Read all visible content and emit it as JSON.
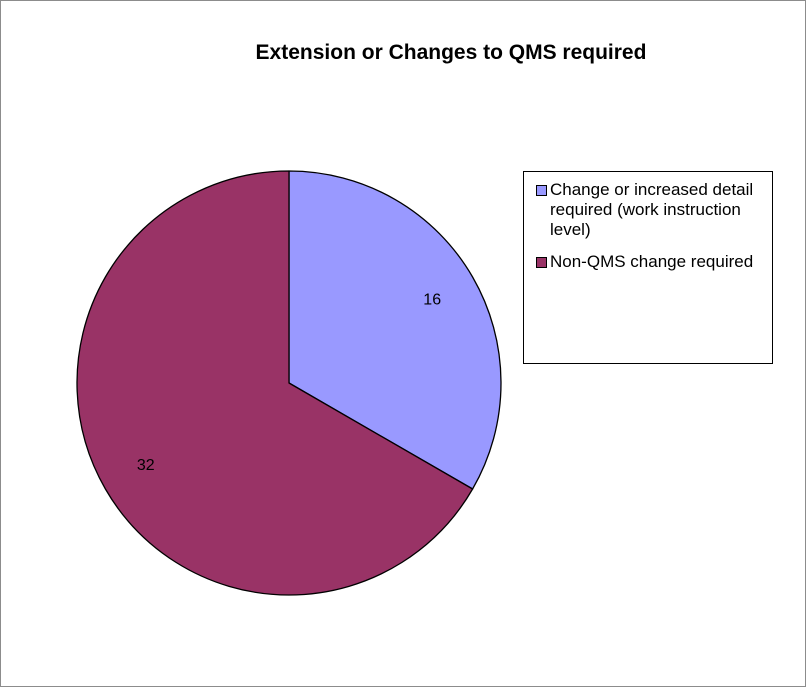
{
  "chart_data": {
    "type": "pie",
    "title": "Extension or Changes to QMS required",
    "categories": [
      "Change or increased detail required (work instruction level)",
      "Non-QMS change required"
    ],
    "values": [
      16,
      32
    ],
    "data_labels": [
      "16",
      "32"
    ],
    "colors": [
      "#9999ff",
      "#993366"
    ],
    "start_angle_deg": 0,
    "direction": "clockwise",
    "legend_position": "right"
  }
}
